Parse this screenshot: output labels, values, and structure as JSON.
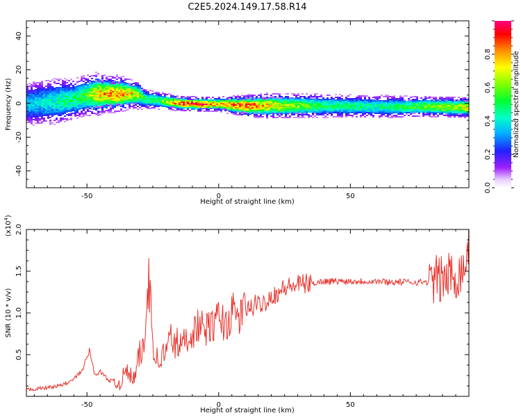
{
  "title": "C2E5.2024.149.17.58.R14",
  "colors": {
    "snr_line": "#e8302a",
    "axis": "#000000",
    "background": "#ffffff"
  },
  "chart_data": [
    {
      "type": "heatmap",
      "xlabel": "Height of straight line (km)",
      "ylabel": "Frequency (Hz)",
      "xlim": [
        -73,
        95
      ],
      "ylim": [
        -50,
        49
      ],
      "x_ticks": [
        -50,
        0,
        50
      ],
      "y_ticks": [
        -40,
        -20,
        0,
        20,
        40
      ],
      "grid": false,
      "ridge": {
        "x": [
          -73,
          -66,
          -60,
          -55,
          -50,
          -46,
          -42,
          -38,
          -33,
          -30,
          -28,
          -22,
          -15,
          -8,
          0,
          5,
          10,
          20,
          40,
          60,
          80,
          95
        ],
        "y": [
          0,
          1,
          2,
          3,
          5,
          6,
          6,
          6,
          6,
          5,
          3,
          2,
          0.5,
          0,
          0,
          -0.5,
          -1,
          -1,
          -1,
          -1.5,
          -1.5,
          -2
        ],
        "amplitude": [
          0.35,
          0.4,
          0.45,
          0.5,
          0.55,
          0.75,
          0.8,
          0.85,
          0.75,
          0.6,
          0.5,
          0.55,
          0.9,
          0.95,
          0.8,
          0.85,
          0.9,
          0.75,
          0.5,
          0.45,
          0.6,
          0.7
        ],
        "spread_hz": [
          7,
          7,
          7,
          6,
          6,
          6,
          5,
          5,
          4,
          4,
          3,
          2.5,
          2,
          2,
          2,
          2.5,
          3,
          3.5,
          3.5,
          3.5,
          3,
          3
        ]
      },
      "colorbar": {
        "label": "Normalized spectral amplitude",
        "range": [
          0,
          1
        ],
        "ticks": [
          0.0,
          0.2,
          0.4,
          0.6,
          0.8
        ]
      }
    },
    {
      "type": "line",
      "xlabel": "Height of straight line (km)",
      "ylabel": "SNR (10 * v/v)",
      "y_multiplier": "(x10",
      "y_multiplier_exp": "4",
      "y_multiplier_close": ")",
      "xlim": [
        -73,
        95
      ],
      "ylim": [
        0,
        2.0
      ],
      "x_ticks": [
        -50,
        0,
        50
      ],
      "y_ticks": [
        0.5,
        1.0,
        1.5,
        2.0
      ],
      "grid": false,
      "series": [
        {
          "x": [
            -73,
            -66,
            -60,
            -56,
            -52,
            -49,
            -47,
            -45,
            -42,
            -38,
            -35,
            -32,
            -30,
            -28,
            -26.5,
            -25,
            -23,
            -20,
            -18,
            -15,
            -12,
            -10,
            -8,
            -5,
            -2,
            0,
            3,
            5,
            8,
            10,
            12,
            14,
            16,
            18,
            20,
            23,
            25,
            28,
            30,
            33,
            36,
            38,
            40,
            42,
            45,
            48,
            50,
            55,
            60,
            65,
            70,
            75,
            80,
            82,
            85,
            88,
            90,
            92,
            94,
            95
          ],
          "y": [
            0.08,
            0.1,
            0.13,
            0.18,
            0.3,
            0.55,
            0.25,
            0.3,
            0.2,
            0.15,
            0.3,
            0.2,
            0.5,
            0.6,
            1.68,
            0.65,
            0.4,
            0.55,
            0.7,
            0.6,
            0.7,
            0.75,
            0.85,
            0.8,
            0.85,
            0.95,
            0.85,
            1.0,
            0.95,
            1.05,
            1.05,
            1.1,
            1.1,
            1.15,
            1.2,
            1.25,
            1.3,
            1.32,
            1.34,
            1.35,
            1.36,
            1.37,
            1.38,
            1.38,
            1.38,
            1.38,
            1.38,
            1.38,
            1.38,
            1.37,
            1.37,
            1.37,
            1.37,
            1.4,
            1.4,
            1.45,
            1.45,
            1.5,
            1.6,
            1.95
          ]
        }
      ]
    }
  ]
}
